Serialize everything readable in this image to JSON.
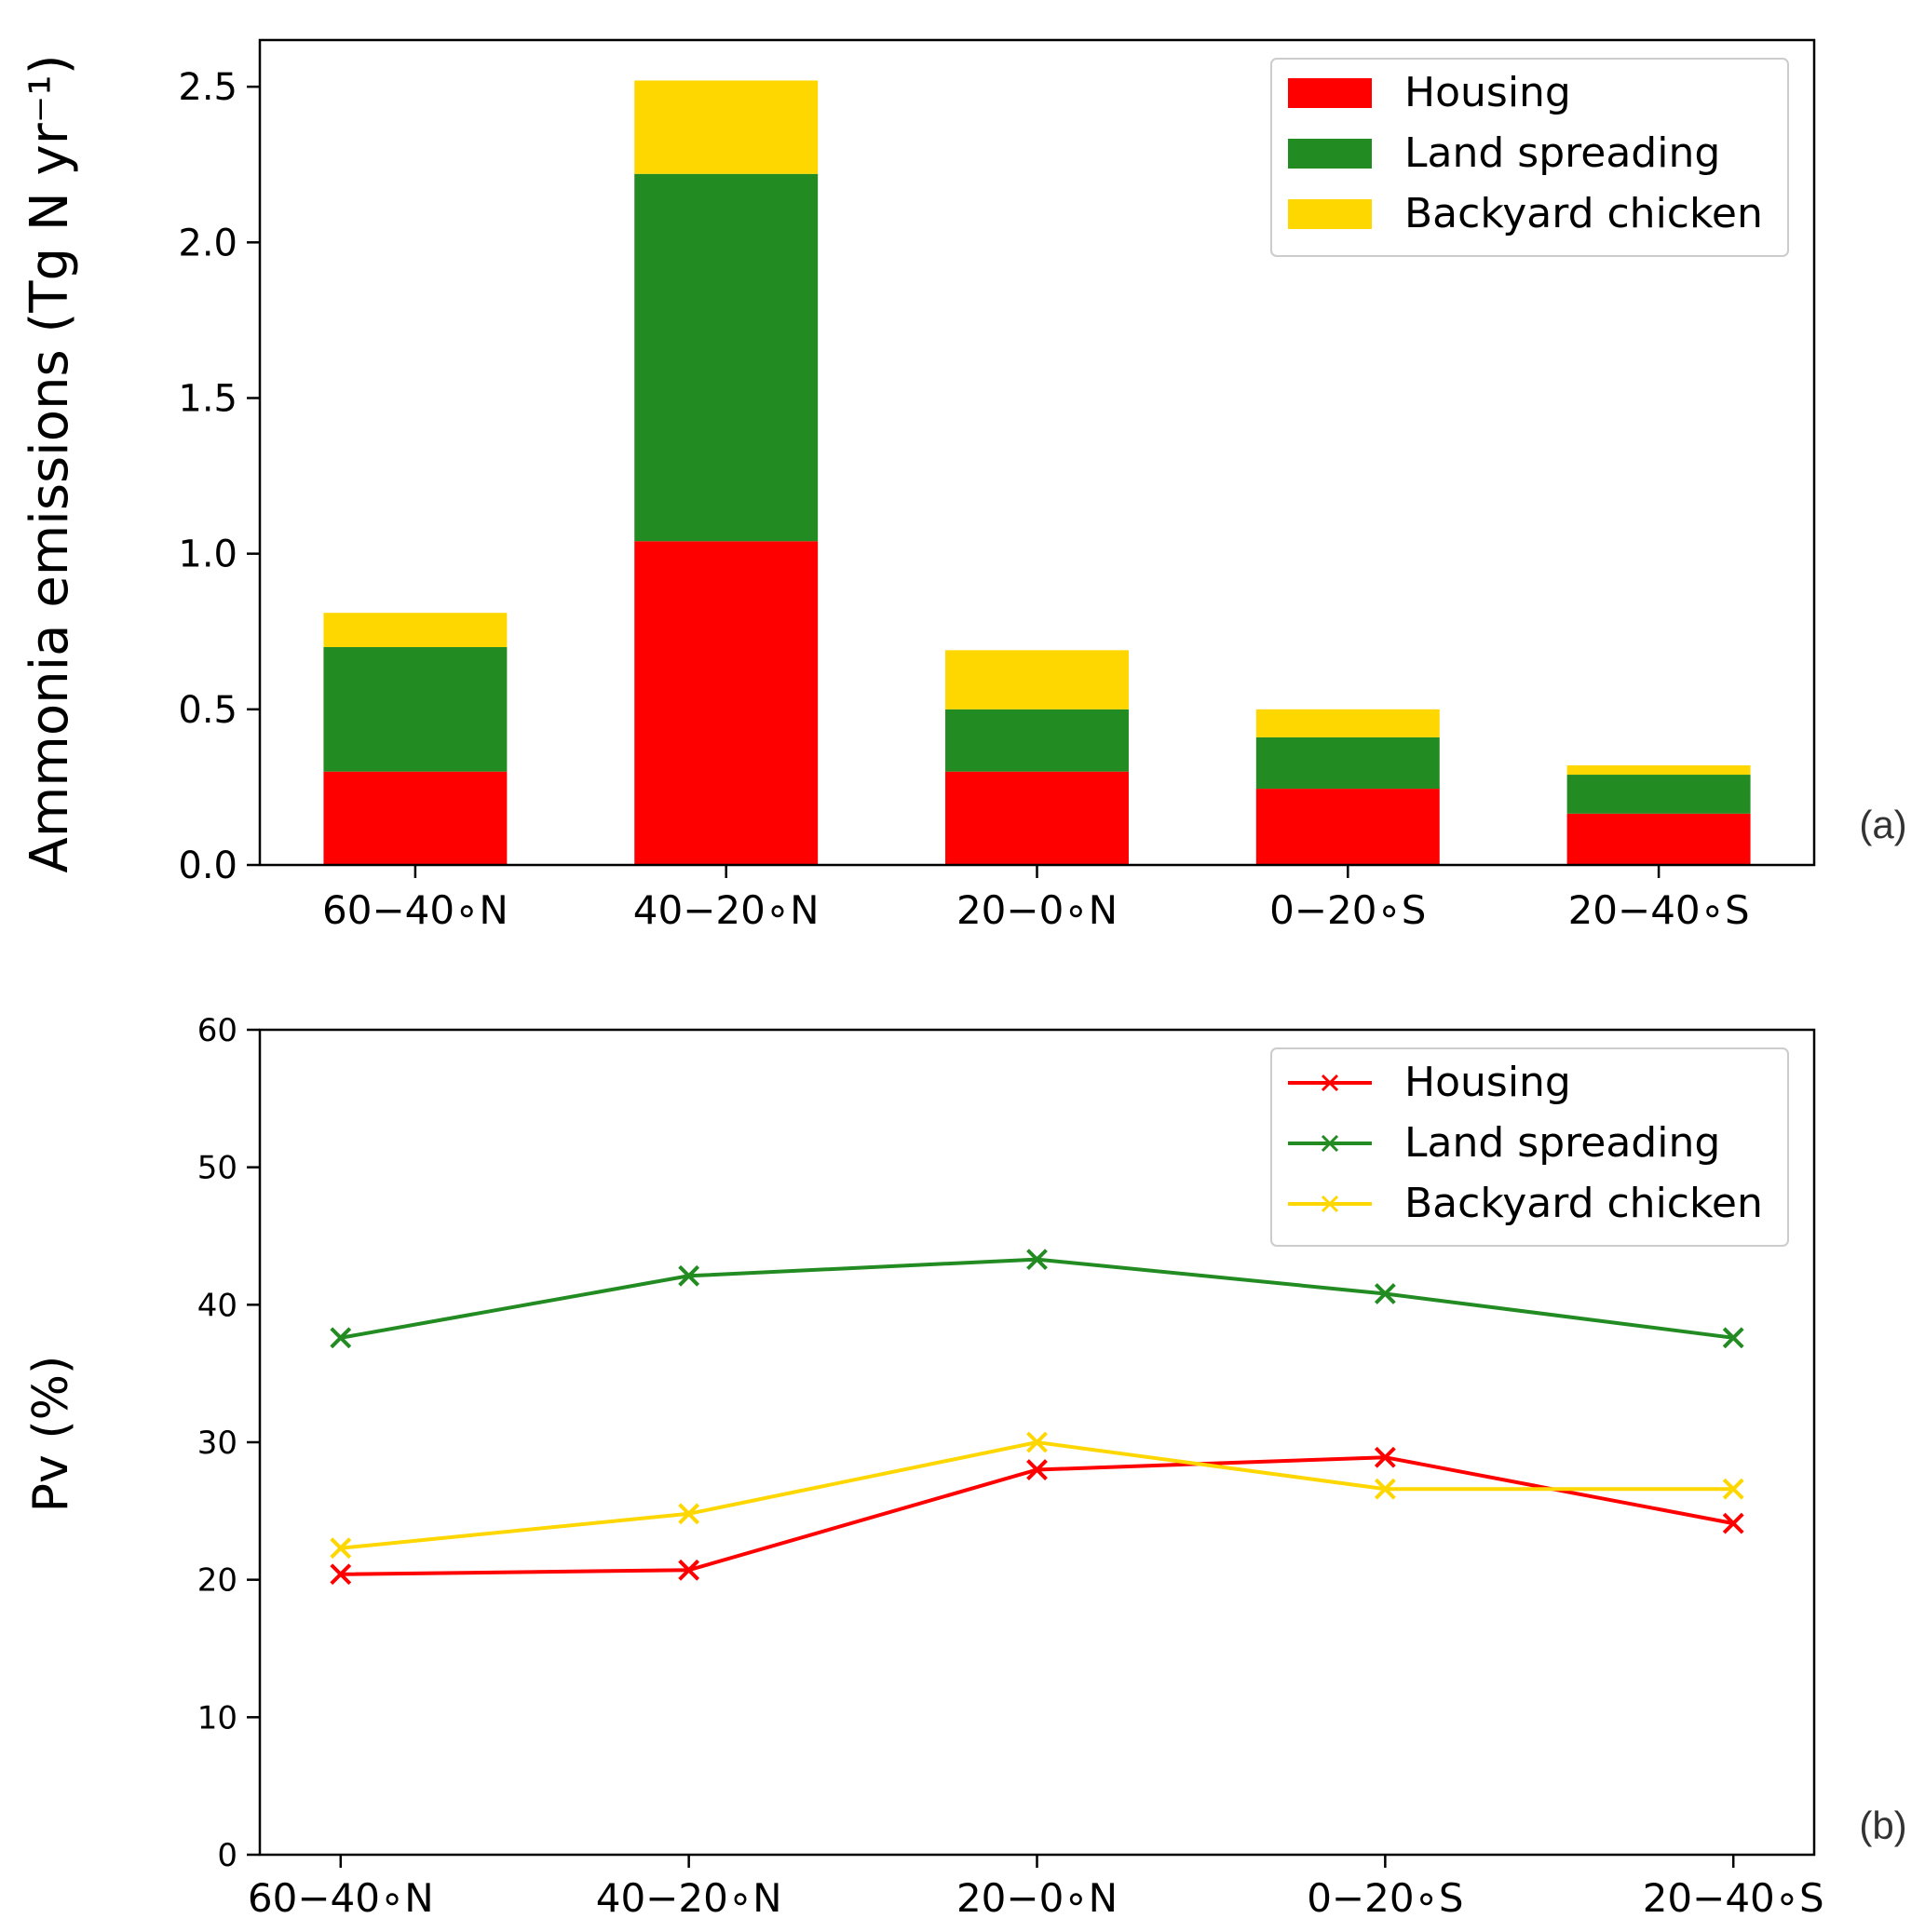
{
  "chart_data": [
    {
      "type": "bar",
      "stacked": true,
      "panel_label": "(a)",
      "ylabel": "Ammonia emissions (Tg N yr⁻¹)",
      "ylim": [
        0,
        2.65
      ],
      "yticks": [
        "0.0",
        "0.5",
        "1.0",
        "1.5",
        "2.0",
        "2.5"
      ],
      "categories": [
        "60−40∘N",
        "40−20∘N",
        "20−0∘N",
        "0−20∘S",
        "20−40∘S"
      ],
      "series": [
        {
          "name": "Housing",
          "color": "#ff0000",
          "values": [
            0.3,
            1.04,
            0.3,
            0.245,
            0.165
          ]
        },
        {
          "name": "Land spreading",
          "color": "#228b22",
          "values": [
            0.4,
            1.18,
            0.2,
            0.165,
            0.125
          ]
        },
        {
          "name": "Backyard chicken",
          "color": "#ffd700",
          "values": [
            0.11,
            0.3,
            0.19,
            0.09,
            0.03
          ]
        }
      ],
      "legend": "top-right",
      "grid": false
    },
    {
      "type": "line",
      "panel_label": "(b)",
      "ylabel": "Pv (%)",
      "ylim": [
        0,
        60
      ],
      "yticks": [
        "0",
        "10",
        "20",
        "30",
        "40",
        "50",
        "60"
      ],
      "categories": [
        "60−40∘N",
        "40−20∘N",
        "20−0∘N",
        "0−20∘S",
        "20−40∘S"
      ],
      "series": [
        {
          "name": "Housing",
          "color": "#ff0000",
          "marker": "x",
          "values": [
            20.4,
            20.7,
            28.0,
            28.9,
            24.1
          ]
        },
        {
          "name": "Land spreading",
          "color": "#228b22",
          "marker": "x",
          "values": [
            37.6,
            42.1,
            43.3,
            40.8,
            37.6
          ]
        },
        {
          "name": "Backyard chicken",
          "color": "#ffd700",
          "marker": "x",
          "values": [
            22.3,
            24.8,
            30.0,
            26.6,
            26.6
          ]
        }
      ],
      "legend": "top-right",
      "grid": false
    }
  ]
}
